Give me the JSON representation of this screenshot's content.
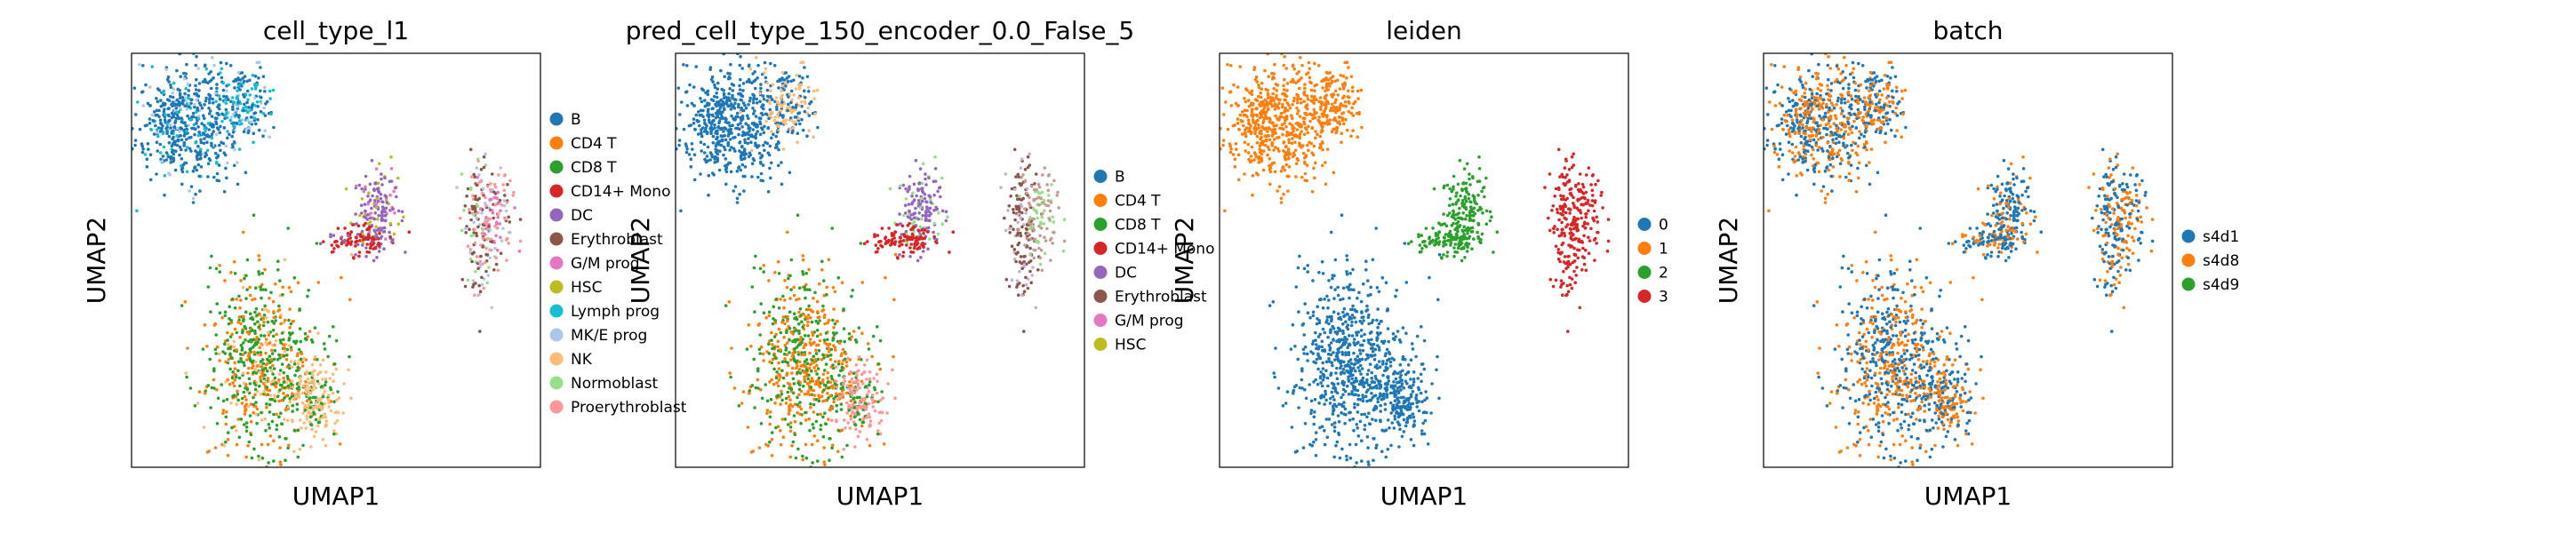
{
  "chart_data": [
    {
      "type": "scatter",
      "title": "cell_type_l1",
      "xlabel": "UMAP1",
      "ylabel": "UMAP2",
      "grid": false,
      "legend": "right",
      "legend_items": [
        {
          "label": "B",
          "color": "#1f77b4"
        },
        {
          "label": "CD4 T",
          "color": "#ff7f0e"
        },
        {
          "label": "CD8 T",
          "color": "#2ca02c"
        },
        {
          "label": "CD14+ Mono",
          "color": "#d62728"
        },
        {
          "label": "DC",
          "color": "#9467bd"
        },
        {
          "label": "Erythroblast",
          "color": "#8c564b"
        },
        {
          "label": "G/M prog",
          "color": "#e377c2"
        },
        {
          "label": "HSC",
          "color": "#bcbd22"
        },
        {
          "label": "Lymph prog",
          "color": "#17becf"
        },
        {
          "label": "MK/E prog",
          "color": "#aec7e8"
        },
        {
          "label": "NK",
          "color": "#ffbb78"
        },
        {
          "label": "Normoblast",
          "color": "#98df8a"
        },
        {
          "label": "Proerythroblast",
          "color": "#ff9896"
        }
      ],
      "clusters": [
        {
          "cx": 0.13,
          "cy": 0.82,
          "sx": 0.06,
          "sy": 0.07,
          "n": 520,
          "colors": [
            "#1f77b4",
            "#1f77b4",
            "#1f77b4",
            "#1f77b4",
            "#1f77b4",
            "#1f77b4",
            "#1f77b4",
            "#1f77b4",
            "#17becf",
            "#aec7e8"
          ]
        },
        {
          "cx": 0.27,
          "cy": 0.88,
          "sx": 0.035,
          "sy": 0.05,
          "n": 200,
          "colors": [
            "#1f77b4",
            "#1f77b4",
            "#1f77b4",
            "#17becf",
            "#17becf",
            "#aec7e8"
          ]
        },
        {
          "cx": 0.6,
          "cy": 0.62,
          "sx": 0.025,
          "sy": 0.05,
          "n": 170,
          "colors": [
            "#9467bd",
            "#9467bd",
            "#9467bd",
            "#e377c2",
            "#bcbd22"
          ]
        },
        {
          "cx": 0.56,
          "cy": 0.55,
          "sx": 0.045,
          "sy": 0.02,
          "n": 110,
          "colors": [
            "#d62728",
            "#d62728",
            "#d62728",
            "#9467bd"
          ]
        },
        {
          "cx": 0.85,
          "cy": 0.57,
          "sx": 0.02,
          "sy": 0.09,
          "n": 150,
          "colors": [
            "#8c564b",
            "#8c564b",
            "#ff9896",
            "#98df8a",
            "#aec7e8"
          ]
        },
        {
          "cx": 0.89,
          "cy": 0.61,
          "sx": 0.025,
          "sy": 0.06,
          "n": 110,
          "colors": [
            "#ff9896",
            "#ff9896",
            "#aec7e8",
            "#e377c2",
            "#8c564b"
          ]
        },
        {
          "cx": 0.32,
          "cy": 0.25,
          "sx": 0.07,
          "sy": 0.11,
          "n": 700,
          "colors": [
            "#2ca02c",
            "#2ca02c",
            "#2ca02c",
            "#2ca02c",
            "#ff7f0e",
            "#ff7f0e",
            "#ff7f0e",
            "#ffbb78"
          ]
        },
        {
          "cx": 0.45,
          "cy": 0.16,
          "sx": 0.03,
          "sy": 0.05,
          "n": 170,
          "colors": [
            "#ffbb78",
            "#ffbb78",
            "#ffbb78",
            "#2ca02c"
          ]
        }
      ]
    },
    {
      "type": "scatter",
      "title": "pred_cell_type_150_encoder_0.0_False_5",
      "xlabel": "UMAP1",
      "ylabel": "UMAP2",
      "grid": false,
      "legend": "right",
      "legend_items": [
        {
          "label": "B",
          "color": "#1f77b4"
        },
        {
          "label": "CD4 T",
          "color": "#ff7f0e"
        },
        {
          "label": "CD8 T",
          "color": "#2ca02c"
        },
        {
          "label": "CD14+ Mono",
          "color": "#d62728"
        },
        {
          "label": "DC",
          "color": "#9467bd"
        },
        {
          "label": "Erythroblast",
          "color": "#8c564b"
        },
        {
          "label": "G/M prog",
          "color": "#e377c2"
        },
        {
          "label": "HSC",
          "color": "#bcbd22"
        }
      ],
      "clusters": [
        {
          "cx": 0.13,
          "cy": 0.82,
          "sx": 0.06,
          "sy": 0.07,
          "n": 520,
          "colors": [
            "#1f77b4"
          ]
        },
        {
          "cx": 0.27,
          "cy": 0.88,
          "sx": 0.035,
          "sy": 0.05,
          "n": 200,
          "colors": [
            "#1f77b4",
            "#1f77b4",
            "#ffbb78",
            "#ffbb78"
          ]
        },
        {
          "cx": 0.6,
          "cy": 0.62,
          "sx": 0.025,
          "sy": 0.05,
          "n": 170,
          "colors": [
            "#9467bd",
            "#9467bd",
            "#9467bd",
            "#98df8a"
          ]
        },
        {
          "cx": 0.56,
          "cy": 0.55,
          "sx": 0.045,
          "sy": 0.02,
          "n": 110,
          "colors": [
            "#d62728"
          ]
        },
        {
          "cx": 0.85,
          "cy": 0.57,
          "sx": 0.02,
          "sy": 0.09,
          "n": 150,
          "colors": [
            "#8c564b",
            "#8c564b",
            "#c5b0d5"
          ]
        },
        {
          "cx": 0.89,
          "cy": 0.61,
          "sx": 0.025,
          "sy": 0.06,
          "n": 110,
          "colors": [
            "#c49c94",
            "#c49c94",
            "#98df8a"
          ]
        },
        {
          "cx": 0.32,
          "cy": 0.25,
          "sx": 0.07,
          "sy": 0.11,
          "n": 700,
          "colors": [
            "#2ca02c",
            "#2ca02c",
            "#2ca02c",
            "#ff7f0e",
            "#ff7f0e",
            "#ff7f0e",
            "#ff7f0e"
          ]
        },
        {
          "cx": 0.45,
          "cy": 0.16,
          "sx": 0.03,
          "sy": 0.05,
          "n": 170,
          "colors": [
            "#ff9896",
            "#ff9896",
            "#ff9896",
            "#2ca02c"
          ]
        }
      ]
    },
    {
      "type": "scatter",
      "title": "leiden",
      "xlabel": "UMAP1",
      "ylabel": "UMAP2",
      "grid": false,
      "legend": "right",
      "legend_items": [
        {
          "label": "0",
          "color": "#1f77b4"
        },
        {
          "label": "1",
          "color": "#ff7f0e"
        },
        {
          "label": "2",
          "color": "#2ca02c"
        },
        {
          "label": "3",
          "color": "#d62728"
        }
      ],
      "clusters": [
        {
          "cx": 0.13,
          "cy": 0.82,
          "sx": 0.06,
          "sy": 0.07,
          "n": 520,
          "colors": [
            "#ff7f0e"
          ]
        },
        {
          "cx": 0.27,
          "cy": 0.88,
          "sx": 0.035,
          "sy": 0.05,
          "n": 200,
          "colors": [
            "#ff7f0e"
          ]
        },
        {
          "cx": 0.6,
          "cy": 0.62,
          "sx": 0.025,
          "sy": 0.05,
          "n": 170,
          "colors": [
            "#2ca02c"
          ]
        },
        {
          "cx": 0.56,
          "cy": 0.55,
          "sx": 0.045,
          "sy": 0.02,
          "n": 110,
          "colors": [
            "#2ca02c"
          ]
        },
        {
          "cx": 0.85,
          "cy": 0.57,
          "sx": 0.02,
          "sy": 0.09,
          "n": 150,
          "colors": [
            "#d62728"
          ]
        },
        {
          "cx": 0.89,
          "cy": 0.61,
          "sx": 0.025,
          "sy": 0.06,
          "n": 110,
          "colors": [
            "#d62728"
          ]
        },
        {
          "cx": 0.32,
          "cy": 0.25,
          "sx": 0.07,
          "sy": 0.11,
          "n": 700,
          "colors": [
            "#1f77b4"
          ]
        },
        {
          "cx": 0.45,
          "cy": 0.16,
          "sx": 0.03,
          "sy": 0.05,
          "n": 170,
          "colors": [
            "#1f77b4"
          ]
        }
      ]
    },
    {
      "type": "scatter",
      "title": "batch",
      "xlabel": "UMAP1",
      "ylabel": "UMAP2",
      "grid": false,
      "legend": "right",
      "legend_items": [
        {
          "label": "s4d1",
          "color": "#1f77b4"
        },
        {
          "label": "s4d8",
          "color": "#ff7f0e"
        },
        {
          "label": "s4d9",
          "color": "#2ca02c"
        }
      ],
      "clusters": [
        {
          "cx": 0.13,
          "cy": 0.82,
          "sx": 0.06,
          "sy": 0.07,
          "n": 520,
          "colors": [
            "#1f77b4",
            "#ff7f0e"
          ]
        },
        {
          "cx": 0.27,
          "cy": 0.88,
          "sx": 0.035,
          "sy": 0.05,
          "n": 200,
          "colors": [
            "#1f77b4",
            "#ff7f0e"
          ]
        },
        {
          "cx": 0.6,
          "cy": 0.62,
          "sx": 0.025,
          "sy": 0.05,
          "n": 170,
          "colors": [
            "#1f77b4",
            "#1f77b4",
            "#ff7f0e"
          ]
        },
        {
          "cx": 0.56,
          "cy": 0.55,
          "sx": 0.045,
          "sy": 0.02,
          "n": 110,
          "colors": [
            "#1f77b4",
            "#1f77b4",
            "#ff7f0e"
          ]
        },
        {
          "cx": 0.85,
          "cy": 0.57,
          "sx": 0.02,
          "sy": 0.09,
          "n": 150,
          "colors": [
            "#1f77b4",
            "#ff7f0e"
          ]
        },
        {
          "cx": 0.89,
          "cy": 0.61,
          "sx": 0.025,
          "sy": 0.06,
          "n": 110,
          "colors": [
            "#1f77b4",
            "#ff7f0e"
          ]
        },
        {
          "cx": 0.32,
          "cy": 0.25,
          "sx": 0.07,
          "sy": 0.11,
          "n": 700,
          "colors": [
            "#1f77b4",
            "#ff7f0e"
          ]
        },
        {
          "cx": 0.45,
          "cy": 0.16,
          "sx": 0.03,
          "sy": 0.05,
          "n": 170,
          "colors": [
            "#1f77b4",
            "#ff7f0e"
          ]
        }
      ]
    }
  ]
}
